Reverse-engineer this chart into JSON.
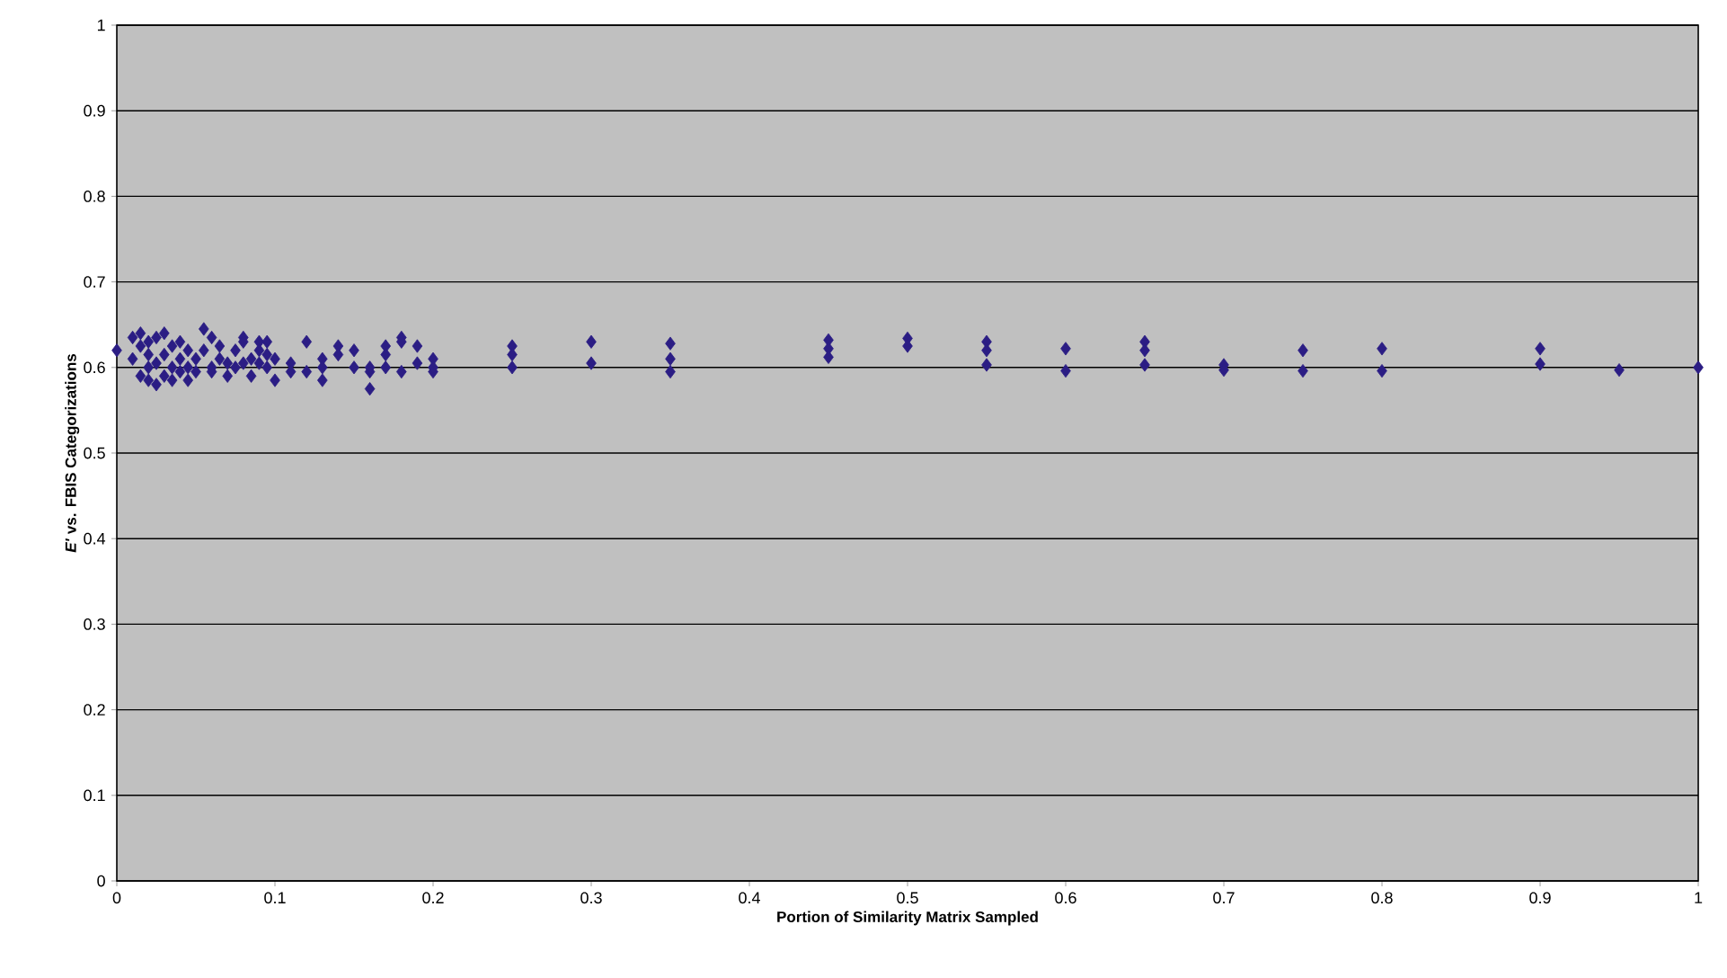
{
  "chart_data": {
    "type": "scatter",
    "xlabel": "Portion of Similarity Matrix Sampled",
    "ylabel": "*E'* vs. FBIS Categorizations",
    "xlim": [
      0,
      1
    ],
    "ylim": [
      0,
      1
    ],
    "xticks": [
      0,
      0.1,
      0.2,
      0.3,
      0.4,
      0.5,
      0.6,
      0.7,
      0.8,
      0.9,
      1
    ],
    "yticks": [
      0,
      0.1,
      0.2,
      0.3,
      0.4,
      0.5,
      0.6,
      0.7,
      0.8,
      0.9,
      1
    ],
    "grid": "y",
    "marker": "diamond",
    "series": [
      {
        "color": "#2b1d84",
        "x": [
          0,
          0.01,
          0.01,
          0.015,
          0.015,
          0.015,
          0.02,
          0.02,
          0.02,
          0.02,
          0.025,
          0.025,
          0.025,
          0.03,
          0.03,
          0.03,
          0.035,
          0.035,
          0.035,
          0.04,
          0.04,
          0.04,
          0.045,
          0.045,
          0.045,
          0.05,
          0.05,
          0.055,
          0.055,
          0.06,
          0.06,
          0.06,
          0.065,
          0.065,
          0.07,
          0.07,
          0.075,
          0.075,
          0.08,
          0.08,
          0.08,
          0.085,
          0.085,
          0.09,
          0.09,
          0.09,
          0.095,
          0.095,
          0.095,
          0.1,
          0.1,
          0.11,
          0.11,
          0.12,
          0.12,
          0.13,
          0.13,
          0.13,
          0.14,
          0.14,
          0.15,
          0.15,
          0.16,
          0.16,
          0.16,
          0.17,
          0.17,
          0.17,
          0.18,
          0.18,
          0.18,
          0.19,
          0.19,
          0.2,
          0.2,
          0.2,
          0.25,
          0.25,
          0.25,
          0.3,
          0.3,
          0.35,
          0.35,
          0.35,
          0.45,
          0.45,
          0.45,
          0.5,
          0.5,
          0.55,
          0.55,
          0.55,
          0.6,
          0.6,
          0.65,
          0.65,
          0.65,
          0.7,
          0.7,
          0.75,
          0.75,
          0.8,
          0.8,
          0.9,
          0.9,
          0.95,
          1
        ],
        "values": [
          0.62,
          0.635,
          0.61,
          0.64,
          0.59,
          0.625,
          0.6,
          0.63,
          0.585,
          0.615,
          0.58,
          0.605,
          0.635,
          0.64,
          0.59,
          0.615,
          0.6,
          0.625,
          0.585,
          0.63,
          0.61,
          0.595,
          0.585,
          0.62,
          0.6,
          0.595,
          0.61,
          0.645,
          0.62,
          0.6,
          0.635,
          0.595,
          0.625,
          0.61,
          0.59,
          0.605,
          0.6,
          0.62,
          0.635,
          0.63,
          0.605,
          0.59,
          0.61,
          0.63,
          0.605,
          0.62,
          0.63,
          0.6,
          0.615,
          0.585,
          0.61,
          0.605,
          0.595,
          0.63,
          0.595,
          0.61,
          0.585,
          0.6,
          0.625,
          0.615,
          0.62,
          0.6,
          0.595,
          0.575,
          0.6,
          0.625,
          0.615,
          0.6,
          0.635,
          0.63,
          0.595,
          0.625,
          0.605,
          0.61,
          0.595,
          0.6,
          0.625,
          0.615,
          0.6,
          0.63,
          0.605,
          0.628,
          0.61,
          0.595,
          0.632,
          0.622,
          0.612,
          0.634,
          0.625,
          0.63,
          0.62,
          0.603,
          0.622,
          0.596,
          0.63,
          0.62,
          0.603,
          0.603,
          0.597,
          0.62,
          0.596,
          0.622,
          0.596,
          0.622,
          0.604,
          0.597,
          0.6
        ]
      }
    ]
  }
}
